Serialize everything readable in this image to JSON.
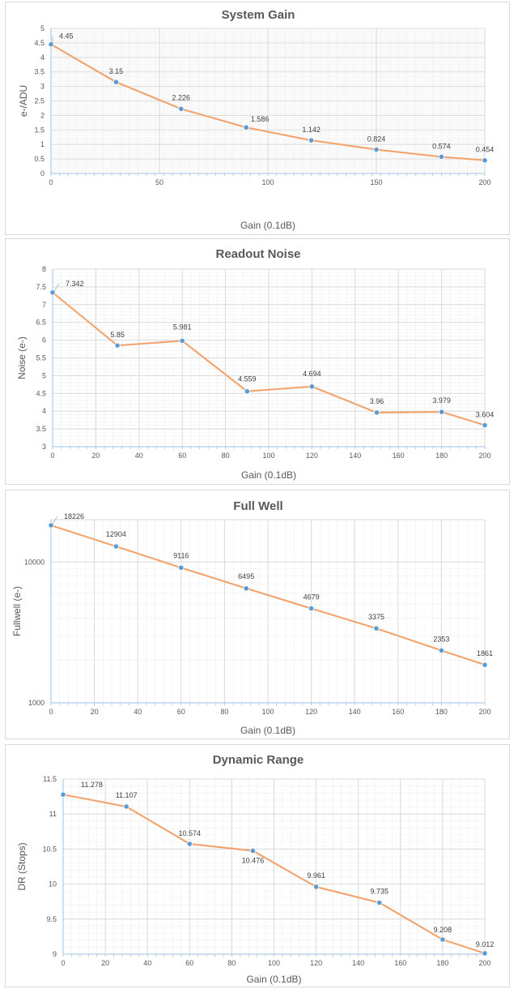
{
  "colors": {
    "line": "#f4b183",
    "marker": "#5b9bd5",
    "axis": "#9dc3e6",
    "text": "#595959"
  },
  "chart_data": [
    {
      "type": "line",
      "title": "System Gain",
      "xlabel": "Gain (0.1dB)",
      "ylabel": "e-/ADU",
      "x": [
        0,
        30,
        60,
        90,
        120,
        150,
        180,
        200
      ],
      "series": [
        {
          "values": [
            4.45,
            3.15,
            2.226,
            1.586,
            1.142,
            0.824,
            0.574,
            0.454
          ]
        }
      ],
      "data_labels": [
        "4.45",
        "3.15",
        "2.226",
        "1.586",
        "1.142",
        "0.824",
        "0.574",
        "0.454"
      ],
      "xlim": [
        0,
        200
      ],
      "ylim": [
        0,
        5
      ],
      "xticks": [
        0,
        50,
        100,
        150,
        200
      ],
      "yticks": [
        0,
        0.5,
        1,
        1.5,
        2,
        2.5,
        3,
        3.5,
        4,
        4.5,
        5
      ],
      "ytick_labels": [
        "0",
        "0.5",
        "1",
        "1.5",
        "2",
        "2.5",
        "3",
        "3.5",
        "4",
        "4.5",
        "5"
      ],
      "yscale": "linear",
      "grid": true
    },
    {
      "type": "line",
      "title": "Readout Noise",
      "xlabel": "Gain (0.1dB)",
      "ylabel": "Noise (e-)",
      "x": [
        0,
        30,
        60,
        90,
        120,
        150,
        180,
        200
      ],
      "series": [
        {
          "values": [
            7.342,
            5.85,
            5.981,
            4.559,
            4.694,
            3.96,
            3.979,
            3.604
          ]
        }
      ],
      "data_labels": [
        "7.342",
        "5.85",
        "5.981",
        "4.559",
        "4.694",
        "3.96",
        "3.979",
        "3.604"
      ],
      "xlim": [
        0,
        200
      ],
      "ylim": [
        3,
        8
      ],
      "xticks": [
        0,
        20,
        40,
        60,
        80,
        100,
        120,
        140,
        160,
        180,
        200
      ],
      "yticks": [
        3,
        3.5,
        4,
        4.5,
        5,
        5.5,
        6,
        6.5,
        7,
        7.5,
        8
      ],
      "ytick_labels": [
        "3",
        "3.5",
        "4",
        "4.5",
        "5",
        "5.5",
        "6",
        "6.5",
        "7",
        "7.5",
        "8"
      ],
      "yscale": "linear",
      "grid": true
    },
    {
      "type": "line",
      "title": "Full Well",
      "xlabel": "Gain (0.1dB)",
      "ylabel": "Fullwell (e-)",
      "x": [
        0,
        30,
        60,
        90,
        120,
        150,
        180,
        200
      ],
      "series": [
        {
          "values": [
            18226,
            12904,
            9116,
            6495,
            4679,
            3375,
            2353,
            1861
          ]
        }
      ],
      "data_labels": [
        "18226",
        "12904",
        "9116",
        "6495",
        "4679",
        "3375",
        "2353",
        "1861"
      ],
      "xlim": [
        0,
        200
      ],
      "ylim": [
        1000,
        20000
      ],
      "xticks": [
        0,
        20,
        40,
        60,
        80,
        100,
        120,
        140,
        160,
        180,
        200
      ],
      "yticks": [
        1000,
        10000
      ],
      "ytick_labels": [
        "1000",
        "10000"
      ],
      "yscale": "log",
      "grid": true
    },
    {
      "type": "line",
      "title": "Dynamic Range",
      "xlabel": "Gain (0.1dB)",
      "ylabel": "DR (Stops)",
      "x": [
        0,
        30,
        60,
        90,
        120,
        150,
        180,
        200
      ],
      "series": [
        {
          "values": [
            11.278,
            11.107,
            10.574,
            10.476,
            9.961,
            9.735,
            9.208,
            9.012
          ]
        }
      ],
      "data_labels": [
        "11.278",
        "11.107",
        "10.574",
        "10.476",
        "9.961",
        "9.735",
        "9.208",
        "9.012"
      ],
      "xlim": [
        0,
        200
      ],
      "ylim": [
        9,
        11.5
      ],
      "xticks": [
        0,
        20,
        40,
        60,
        80,
        100,
        120,
        140,
        160,
        180,
        200
      ],
      "yticks": [
        9,
        9.5,
        10,
        10.5,
        11,
        11.5
      ],
      "ytick_labels": [
        "9",
        "9.5",
        "10",
        "10.5",
        "11",
        "11.5"
      ],
      "yscale": "linear",
      "grid": true
    }
  ]
}
